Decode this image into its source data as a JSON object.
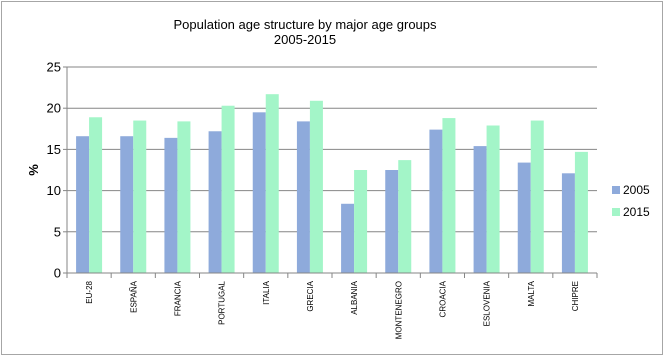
{
  "chart_data": {
    "type": "bar",
    "title": "Population age structure by major age groups",
    "subtitle": "2005-2015",
    "xlabel": "",
    "ylabel": "%",
    "ylim": [
      0,
      25
    ],
    "yticks": [
      0,
      5,
      10,
      15,
      20,
      25
    ],
    "grid": true,
    "legend_position": "right",
    "categories": [
      "EU-28",
      "ESPAÑA",
      "FRANCIA",
      "PORTUGAL",
      "ITALIA",
      "GRECIA",
      "ALBANIA",
      "MONTENEGRO",
      "CROACIA",
      "ESLOVENIA",
      "MALTA",
      "CHIPRE"
    ],
    "series": [
      {
        "name": "2005",
        "color": "#8eaadb",
        "values": [
          16.6,
          16.6,
          16.4,
          17.2,
          19.5,
          18.4,
          8.4,
          12.5,
          17.4,
          15.4,
          13.4,
          12.1
        ]
      },
      {
        "name": "2015",
        "color": "#a3f5c8",
        "values": [
          18.9,
          18.5,
          18.4,
          20.3,
          21.7,
          20.9,
          12.5,
          13.7,
          18.8,
          17.9,
          18.5,
          14.7
        ]
      }
    ]
  }
}
